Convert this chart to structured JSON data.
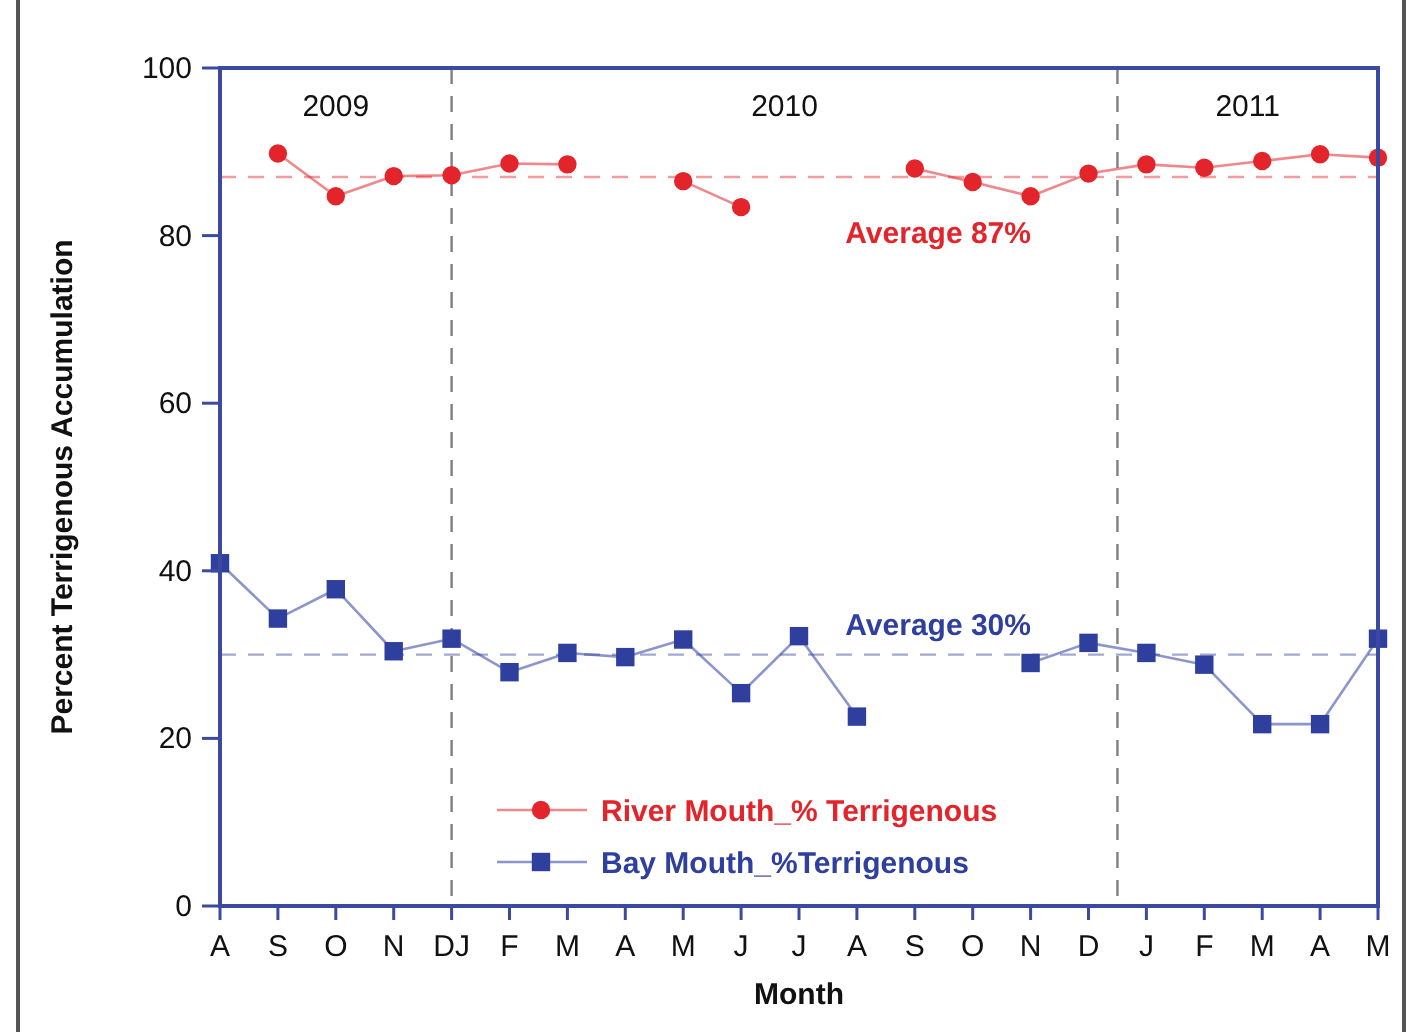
{
  "chart_data": {
    "type": "line",
    "xlabel": "Month",
    "ylabel": "Percent Terrigenous Accumulation",
    "categories": [
      "A",
      "S",
      "O",
      "N",
      "DJ",
      "F",
      "M",
      "A",
      "M",
      "J",
      "J",
      "A",
      "S",
      "O",
      "N",
      "D",
      "J",
      "F",
      "M",
      "A",
      "M"
    ],
    "ylim": [
      0,
      100
    ],
    "yticks": [
      0,
      20,
      40,
      60,
      80,
      100
    ],
    "line_style": "solid",
    "legend": "bottom",
    "series": [
      {
        "name": "River Mouth_% Terrigenous",
        "color": "#e3242b",
        "marker": "circle",
        "values": [
          null,
          89.8,
          84.7,
          87.1,
          87.2,
          88.6,
          88.5,
          null,
          86.5,
          83.4,
          null,
          null,
          88.0,
          86.4,
          84.7,
          87.4,
          88.5,
          88.1,
          88.9,
          89.7,
          89.3
        ]
      },
      {
        "name": "Bay Mouth_%Terrigenous",
        "color": "#2e3f9e",
        "marker": "square",
        "values": [
          40.9,
          34.3,
          37.8,
          30.4,
          31.9,
          27.9,
          30.2,
          29.7,
          31.8,
          25.4,
          32.2,
          22.6,
          null,
          null,
          29.0,
          31.4,
          30.2,
          28.8,
          21.7,
          21.7,
          31.9
        ]
      }
    ],
    "ref_lines": [
      {
        "axis": "y",
        "value": 87,
        "label": "Average 87%",
        "color": "#e3242b",
        "line_style": "dashed"
      },
      {
        "axis": "y",
        "value": 30,
        "label": "Average 30%",
        "color": "#2e3f9e",
        "line_style": "dashed"
      },
      {
        "axis": "x",
        "value": "DJ",
        "color": "#808080",
        "line_style": "dashed"
      }
    ],
    "annotations": [
      "2009",
      "2010",
      "2011"
    ]
  }
}
